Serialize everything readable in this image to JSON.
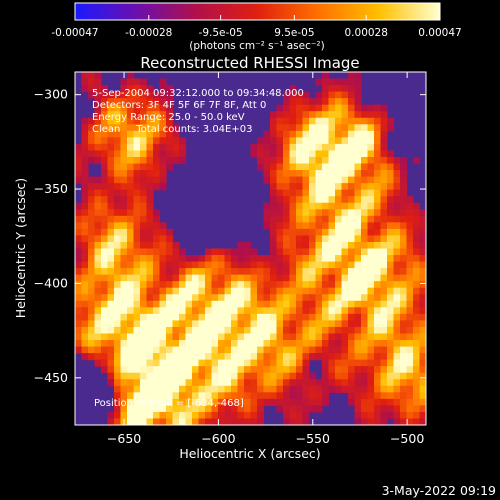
{
  "colors": {
    "foreground": "#ffffff",
    "background": "#000000"
  },
  "colorbar": {
    "ticks": [
      "-0.00047",
      "-0.00028",
      "-9.5e-05",
      "9.5e-05",
      "0.00028",
      "0.00047"
    ],
    "tick_values": [
      -0.00047,
      -0.00028,
      -9.5e-05,
      9.5e-05,
      0.00028,
      0.00047
    ],
    "range": [
      -0.00047,
      0.00047
    ],
    "units": "(photons cm⁻² s⁻¹ asec⁻²)",
    "colormap": [
      "#1a1aff",
      "#6a0fb0",
      "#b0104a",
      "#e02010",
      "#ff7000",
      "#ffc000",
      "#ffffd0"
    ]
  },
  "chart_data": {
    "type": "heatmap",
    "title": "Reconstructed RHESSI Image",
    "xlabel": "Heliocentric X (arcsec)",
    "ylabel": "Heliocentric Y (arcsec)",
    "xlim": [
      -676,
      -490
    ],
    "ylim": [
      -475,
      -288
    ],
    "x_ticks": [
      -650,
      -600,
      -550,
      -500
    ],
    "y_ticks": [
      -300,
      -350,
      -400,
      -450
    ],
    "x_tick_labels": [
      "−650",
      "−600",
      "−550",
      "−500"
    ],
    "y_tick_labels": [
      "−300",
      "−350",
      "−400",
      "−450"
    ],
    "annotations": [
      "5-Sep-2004 09:32:12.000 to 09:34:48.000",
      "Detectors: 3F 4F 5F 6F 7F 8F, Att 0",
      "Energy Range: 25.0 - 50.0 keV",
      "Clean     Total counts: 3.04E+03"
    ],
    "peak_label": "Position of Peak = [-634,-468]",
    "peak": [
      -634,
      -468
    ],
    "grid": false
  },
  "footer": {
    "timestamp": "3-May-2022 09:19"
  }
}
